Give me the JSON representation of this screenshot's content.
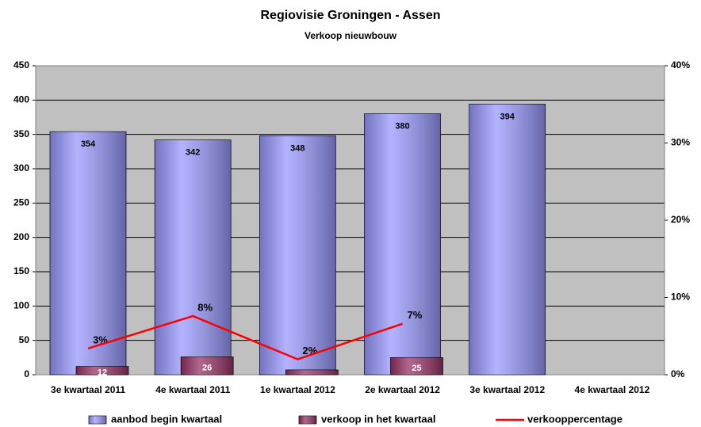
{
  "chart_data": {
    "type": "bar",
    "title": "Regiovisie Groningen - Assen",
    "subtitle": "Verkoop nieuwbouw",
    "categories": [
      "3e kwartaal 2011",
      "4e kwartaal 2011",
      "1e kwartaal 2012",
      "2e kwartaal 2012",
      "3e kwartaal 2012",
      "4e kwartaal 2012"
    ],
    "series": [
      {
        "name": "aanbod begin kwartaal",
        "type": "bar",
        "color": "#9999ff",
        "values": [
          354,
          342,
          348,
          380,
          394,
          null
        ]
      },
      {
        "name": "verkoop in het kwartaal",
        "type": "bar",
        "color": "#993366",
        "values": [
          12,
          26,
          7,
          25,
          null,
          null
        ],
        "value_labels": [
          "12",
          "26",
          null,
          "25",
          null,
          null
        ]
      },
      {
        "name": "verkooppercentage",
        "type": "line",
        "axis": "y2",
        "color": "#ff0000",
        "values": [
          3.4,
          7.6,
          2.0,
          6.6,
          null,
          null
        ],
        "value_labels": [
          "3%",
          "8%",
          "2%",
          "7%",
          null,
          null
        ]
      }
    ],
    "ylim": [
      0,
      450
    ],
    "yticks": [
      0,
      50,
      100,
      150,
      200,
      250,
      300,
      350,
      400,
      450
    ],
    "y2lim": [
      0,
      40
    ],
    "y2ticks": [
      {
        "value": 0,
        "label": "0%"
      },
      {
        "value": 10,
        "label": "10%"
      },
      {
        "value": 20,
        "label": "20%"
      },
      {
        "value": 30,
        "label": "30%"
      },
      {
        "value": 40,
        "label": "40%"
      }
    ],
    "grid": true,
    "legend": "bottom"
  }
}
